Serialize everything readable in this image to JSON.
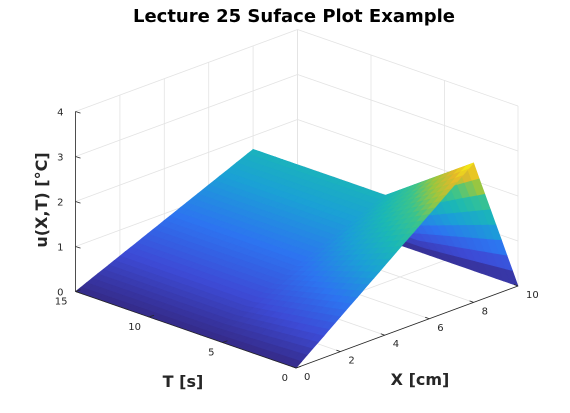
{
  "chart_data": {
    "type": "surface",
    "title": "Lecture 25 Suface Plot Example",
    "xlabel": "X [cm]",
    "ylabel": "T [s]",
    "zlabel": "u(X,T)  [°C]",
    "xlim": [
      0,
      10
    ],
    "ylim": [
      0,
      15
    ],
    "zlim": [
      0,
      4
    ],
    "xticks": [
      "0",
      "2",
      "4",
      "6",
      "8",
      "10"
    ],
    "yticks": [
      "0",
      "5",
      "10",
      "15"
    ],
    "zticks": [
      "0",
      "1",
      "2",
      "3",
      "4"
    ],
    "grid": true,
    "colormap": "parula",
    "surface_samples": [
      {
        "x": 0,
        "t": 0,
        "u": 0
      },
      {
        "x": 5,
        "t": 0,
        "u": 1.7
      },
      {
        "x": 8,
        "t": 0,
        "u": 3.1
      },
      {
        "x": 10,
        "t": 0,
        "u": 0
      },
      {
        "x": 0,
        "t": 15,
        "u": 0
      },
      {
        "x": 5,
        "t": 15,
        "u": 1.7
      },
      {
        "x": 10,
        "t": 15,
        "u": 0
      }
    ]
  }
}
